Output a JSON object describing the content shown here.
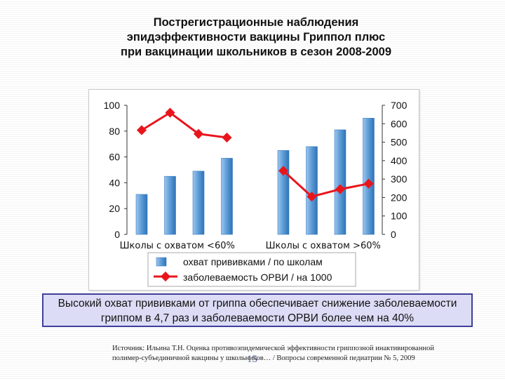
{
  "slide": {
    "title_lines": [
      "Пострегистрационные наблюдения",
      "эпидэффективности вакцины Гриппол плюс",
      "при вакцинации  школьников в сезон 2008-2009"
    ],
    "conclusion_lines": [
      "Высокий охват прививками от гриппа обеспечивает снижение заболеваемости",
      "гриппом в 4,7 раз и заболеваемости ОРВИ более чем на 40%"
    ],
    "source_lines": [
      "Источник: Ильина Т.Н. Оценка противоэпидемической эффективности гриппозной инактивированной",
      "полимер-субъединичной вакцины у школьников… / Вопросы современной педиатрии № 5, 2009"
    ],
    "page_number": "15"
  },
  "chart_data": {
    "type": "bar",
    "groups": [
      "Школы с охватом <60%",
      "Школы с охватом >60%"
    ],
    "left_axis": {
      "min": 0,
      "max": 100,
      "ticks": [
        "0",
        "20",
        "40",
        "60",
        "80",
        "100"
      ]
    },
    "right_axis": {
      "min": 0,
      "max": 700,
      "ticks": [
        "0",
        "100",
        "200",
        "300",
        "400",
        "500",
        "600",
        "700"
      ]
    },
    "series": [
      {
        "name": "охват прививками / по школам",
        "type": "bar",
        "axis": "left",
        "color": "#5b9bd5",
        "values": [
          [
            31,
            45,
            49,
            59
          ],
          [
            65,
            68,
            81,
            90
          ]
        ]
      },
      {
        "name": "заболеваемость ОРВИ / на 1000",
        "type": "line",
        "axis": "right",
        "color": "#e8161c",
        "values": [
          [
            565,
            660,
            545,
            525
          ],
          [
            345,
            205,
            245,
            275
          ]
        ]
      }
    ],
    "legend": "bottom",
    "grid": false
  }
}
